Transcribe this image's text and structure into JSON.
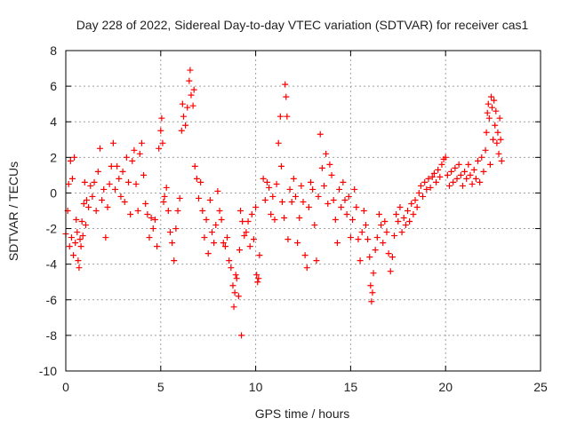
{
  "chart_data": {
    "type": "scatter",
    "title": "Day 228 of 2022, Sidereal Day-to-day VTEC variation (SDTVAR) for receiver cas1",
    "xlabel": "GPS time / hours",
    "ylabel": "SDTVAR / TECUs",
    "xlim": [
      0,
      25
    ],
    "ylim": [
      -10,
      8
    ],
    "x_ticks": [
      "0",
      "5",
      "10",
      "15",
      "20",
      "25"
    ],
    "y_ticks": [
      "-10",
      "-8",
      "-6",
      "-4",
      "-2",
      "0",
      "2",
      "4",
      "6",
      "8"
    ],
    "grid": true,
    "marker": "+",
    "color": "#ff0000",
    "series": [
      {
        "name": "SDTVAR",
        "points": [
          [
            0.0,
            -2.3
          ],
          [
            0.1,
            -1.0
          ],
          [
            0.15,
            0.5
          ],
          [
            0.2,
            -3.0
          ],
          [
            0.25,
            1.8
          ],
          [
            0.3,
            -2.5
          ],
          [
            0.35,
            0.8
          ],
          [
            0.4,
            -3.5
          ],
          [
            0.45,
            2.0
          ],
          [
            0.5,
            -2.8
          ],
          [
            0.55,
            -1.5
          ],
          [
            0.6,
            -2.2
          ],
          [
            0.65,
            -3.8
          ],
          [
            0.7,
            -4.2
          ],
          [
            0.75,
            -2.6
          ],
          [
            0.8,
            -3.0
          ],
          [
            0.85,
            -1.6
          ],
          [
            0.9,
            -2.4
          ],
          [
            0.95,
            -0.6
          ],
          [
            1.0,
            0.6
          ],
          [
            1.05,
            -1.8
          ],
          [
            1.1,
            -0.4
          ],
          [
            1.2,
            -0.8
          ],
          [
            1.3,
            0.4
          ],
          [
            1.4,
            -0.2
          ],
          [
            1.5,
            0.6
          ],
          [
            1.6,
            -1.0
          ],
          [
            1.7,
            1.2
          ],
          [
            1.8,
            2.5
          ],
          [
            1.9,
            -0.4
          ],
          [
            2.0,
            0.2
          ],
          [
            2.1,
            -2.5
          ],
          [
            2.2,
            -0.8
          ],
          [
            2.3,
            0.5
          ],
          [
            2.4,
            1.5
          ],
          [
            2.5,
            2.8
          ],
          [
            2.6,
            0.2
          ],
          [
            2.7,
            1.5
          ],
          [
            2.8,
            0.8
          ],
          [
            2.9,
            -0.2
          ],
          [
            3.0,
            1.2
          ],
          [
            3.1,
            -0.5
          ],
          [
            3.2,
            2.0
          ],
          [
            3.3,
            0.6
          ],
          [
            3.4,
            -1.2
          ],
          [
            3.5,
            1.8
          ],
          [
            3.6,
            2.4
          ],
          [
            3.7,
            0.5
          ],
          [
            3.8,
            -1.0
          ],
          [
            3.9,
            2.2
          ],
          [
            4.0,
            2.8
          ],
          [
            4.1,
            1.0
          ],
          [
            4.2,
            -0.6
          ],
          [
            4.3,
            -1.2
          ],
          [
            4.4,
            -2.5
          ],
          [
            4.5,
            -1.4
          ],
          [
            4.6,
            -2.0
          ],
          [
            4.7,
            -1.5
          ],
          [
            4.8,
            -3.0
          ],
          [
            4.9,
            2.5
          ],
          [
            5.0,
            3.5
          ],
          [
            5.05,
            4.2
          ],
          [
            5.1,
            2.8
          ],
          [
            5.15,
            -0.5
          ],
          [
            5.2,
            -0.2
          ],
          [
            5.3,
            0.3
          ],
          [
            5.4,
            -1.0
          ],
          [
            5.5,
            -2.2
          ],
          [
            5.6,
            -2.8
          ],
          [
            5.7,
            -3.8
          ],
          [
            5.8,
            -2.0
          ],
          [
            5.9,
            -1.0
          ],
          [
            6.0,
            -0.3
          ],
          [
            6.1,
            3.5
          ],
          [
            6.15,
            5.0
          ],
          [
            6.2,
            4.3
          ],
          [
            6.3,
            3.8
          ],
          [
            6.4,
            4.8
          ],
          [
            6.5,
            6.3
          ],
          [
            6.55,
            6.9
          ],
          [
            6.6,
            5.5
          ],
          [
            6.7,
            4.9
          ],
          [
            6.75,
            5.8
          ],
          [
            6.8,
            1.5
          ],
          [
            6.9,
            0.8
          ],
          [
            7.0,
            -0.3
          ],
          [
            7.1,
            0.6
          ],
          [
            7.2,
            -1.0
          ],
          [
            7.3,
            -2.5
          ],
          [
            7.4,
            -1.5
          ],
          [
            7.5,
            -3.4
          ],
          [
            7.6,
            -0.4
          ],
          [
            7.7,
            -2.2
          ],
          [
            7.8,
            -2.8
          ],
          [
            7.9,
            -1.8
          ],
          [
            8.0,
            0.1
          ],
          [
            8.1,
            -1.0
          ],
          [
            8.2,
            -1.5
          ],
          [
            8.3,
            -2.8
          ],
          [
            8.4,
            -3.0
          ],
          [
            8.5,
            -2.5
          ],
          [
            8.6,
            -3.8
          ],
          [
            8.7,
            -4.2
          ],
          [
            8.8,
            -5.2
          ],
          [
            8.85,
            -6.4
          ],
          [
            8.9,
            -5.6
          ],
          [
            8.95,
            -4.6
          ],
          [
            9.0,
            -4.8
          ],
          [
            9.1,
            -5.8
          ],
          [
            9.15,
            -3.2
          ],
          [
            9.2,
            -1.0
          ],
          [
            9.25,
            -8.0
          ],
          [
            9.3,
            -1.6
          ],
          [
            9.4,
            -2.4
          ],
          [
            9.5,
            -2.2
          ],
          [
            9.6,
            -1.6
          ],
          [
            9.7,
            -3.0
          ],
          [
            9.8,
            -1.2
          ],
          [
            9.9,
            -2.6
          ],
          [
            10.0,
            -0.8
          ],
          [
            10.05,
            -4.6
          ],
          [
            10.1,
            -5.0
          ],
          [
            10.15,
            -4.8
          ],
          [
            10.2,
            -3.5
          ],
          [
            10.4,
            0.8
          ],
          [
            10.5,
            -0.4
          ],
          [
            10.6,
            0.6
          ],
          [
            10.7,
            0.3
          ],
          [
            10.8,
            -1.2
          ],
          [
            10.9,
            -0.2
          ],
          [
            11.0,
            -1.5
          ],
          [
            11.1,
            0.5
          ],
          [
            11.2,
            2.8
          ],
          [
            11.3,
            4.3
          ],
          [
            11.35,
            1.5
          ],
          [
            11.4,
            -0.5
          ],
          [
            11.5,
            -1.4
          ],
          [
            11.55,
            6.1
          ],
          [
            11.6,
            5.4
          ],
          [
            11.65,
            4.3
          ],
          [
            11.7,
            -2.6
          ],
          [
            11.8,
            0.2
          ],
          [
            11.9,
            -0.5
          ],
          [
            12.0,
            0.8
          ],
          [
            12.1,
            -0.2
          ],
          [
            12.2,
            -2.8
          ],
          [
            12.3,
            -1.4
          ],
          [
            12.4,
            0.4
          ],
          [
            12.5,
            -0.5
          ],
          [
            12.6,
            -3.5
          ],
          [
            12.7,
            -4.2
          ],
          [
            12.8,
            -0.8
          ],
          [
            12.9,
            0.6
          ],
          [
            13.0,
            0.2
          ],
          [
            13.1,
            -1.8
          ],
          [
            13.2,
            -3.8
          ],
          [
            13.3,
            -0.2
          ],
          [
            13.4,
            3.3
          ],
          [
            13.5,
            1.4
          ],
          [
            13.6,
            0.4
          ],
          [
            13.7,
            2.2
          ],
          [
            13.8,
            -0.6
          ],
          [
            13.9,
            1.6
          ],
          [
            14.0,
            1.0
          ],
          [
            14.1,
            -0.4
          ],
          [
            14.2,
            -1.5
          ],
          [
            14.3,
            -2.8
          ],
          [
            14.4,
            0.2
          ],
          [
            14.5,
            -0.8
          ],
          [
            14.6,
            0.6
          ],
          [
            14.7,
            -0.4
          ],
          [
            14.8,
            -1.2
          ],
          [
            14.9,
            -0.2
          ],
          [
            15.0,
            -2.5
          ],
          [
            15.1,
            -1.5
          ],
          [
            15.2,
            0.2
          ],
          [
            15.3,
            -0.8
          ],
          [
            15.4,
            -2.6
          ],
          [
            15.5,
            -3.8
          ],
          [
            15.6,
            -2.2
          ],
          [
            15.7,
            -1.0
          ],
          [
            15.8,
            -1.8
          ],
          [
            15.9,
            -2.6
          ],
          [
            16.0,
            -3.6
          ],
          [
            16.05,
            -5.2
          ],
          [
            16.1,
            -6.1
          ],
          [
            16.15,
            -5.6
          ],
          [
            16.2,
            -4.5
          ],
          [
            16.3,
            -3.2
          ],
          [
            16.4,
            -2.5
          ],
          [
            16.5,
            -1.2
          ],
          [
            16.6,
            -1.8
          ],
          [
            16.7,
            -2.8
          ],
          [
            16.8,
            -1.6
          ],
          [
            16.9,
            -2.2
          ],
          [
            17.0,
            -3.4
          ],
          [
            17.1,
            -4.4
          ],
          [
            17.2,
            -3.6
          ],
          [
            17.3,
            -2.4
          ],
          [
            17.4,
            -1.2
          ],
          [
            17.5,
            -1.6
          ],
          [
            17.6,
            -0.8
          ],
          [
            17.7,
            -2.2
          ],
          [
            17.8,
            -1.4
          ],
          [
            17.9,
            -1.8
          ],
          [
            18.0,
            -1.0
          ],
          [
            18.1,
            -1.6
          ],
          [
            18.2,
            -0.6
          ],
          [
            18.3,
            -1.2
          ],
          [
            18.4,
            -0.4
          ],
          [
            18.5,
            -0.8
          ],
          [
            18.6,
            0.0
          ],
          [
            18.7,
            0.4
          ],
          [
            18.8,
            -0.2
          ],
          [
            18.9,
            0.6
          ],
          [
            19.0,
            0.2
          ],
          [
            19.1,
            0.8
          ],
          [
            19.2,
            0.3
          ],
          [
            19.3,
            0.9
          ],
          [
            19.4,
            1.1
          ],
          [
            19.5,
            0.6
          ],
          [
            19.6,
            1.3
          ],
          [
            19.7,
            0.9
          ],
          [
            19.8,
            1.6
          ],
          [
            19.9,
            1.9
          ],
          [
            20.0,
            2.0
          ],
          [
            20.1,
            1.0
          ],
          [
            20.2,
            0.4
          ],
          [
            20.3,
            1.2
          ],
          [
            20.4,
            0.6
          ],
          [
            20.5,
            1.4
          ],
          [
            20.6,
            0.8
          ],
          [
            20.7,
            1.6
          ],
          [
            20.8,
            1.0
          ],
          [
            20.9,
            0.4
          ],
          [
            21.0,
            1.2
          ],
          [
            21.1,
            0.8
          ],
          [
            21.2,
            1.6
          ],
          [
            21.3,
            1.0
          ],
          [
            21.4,
            0.5
          ],
          [
            21.5,
            1.3
          ],
          [
            21.6,
            0.8
          ],
          [
            21.7,
            1.8
          ],
          [
            21.8,
            0.6
          ],
          [
            21.9,
            2.0
          ],
          [
            22.0,
            1.2
          ],
          [
            22.1,
            2.4
          ],
          [
            22.15,
            3.4
          ],
          [
            22.2,
            4.5
          ],
          [
            22.25,
            5.0
          ],
          [
            22.3,
            4.2
          ],
          [
            22.35,
            1.6
          ],
          [
            22.4,
            5.4
          ],
          [
            22.45,
            4.8
          ],
          [
            22.5,
            3.0
          ],
          [
            22.55,
            5.2
          ],
          [
            22.6,
            3.8
          ],
          [
            22.65,
            4.6
          ],
          [
            22.7,
            2.8
          ],
          [
            22.75,
            3.4
          ],
          [
            22.8,
            2.2
          ],
          [
            22.85,
            4.2
          ],
          [
            22.9,
            3.0
          ],
          [
            22.95,
            1.8
          ]
        ]
      }
    ]
  }
}
